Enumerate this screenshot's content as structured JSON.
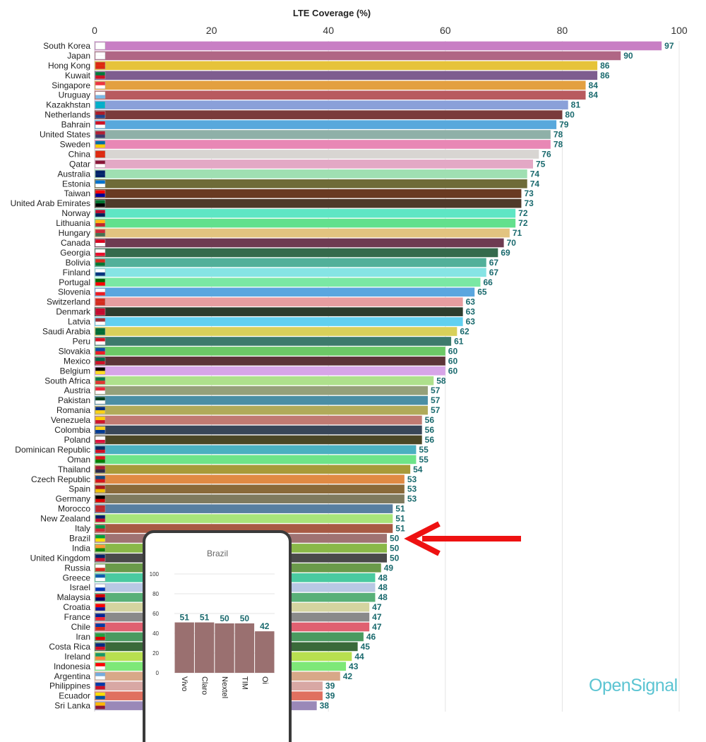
{
  "colors": {
    "value_label": "#1a6a6e",
    "brand": "#5bc4d2",
    "arrow": "#ee1111",
    "inset_bar": "#9a7070"
  },
  "brand_text": "OpenSignal",
  "chart_data": [
    {
      "type": "bar",
      "orientation": "horizontal",
      "title": "LTE Coverage (%)",
      "xlim": [
        0,
        100
      ],
      "x_ticks": [
        0,
        20,
        40,
        60,
        80,
        100
      ],
      "grid": true,
      "data_labels": true,
      "highlight": "Brazil",
      "categories": [
        "South Korea",
        "Japan",
        "Hong Kong",
        "Kuwait",
        "Singapore",
        "Uruguay",
        "Kazakhstan",
        "Netherlands",
        "Bahrain",
        "United States",
        "Sweden",
        "China",
        "Qatar",
        "Australia",
        "Estonia",
        "Taiwan",
        "United Arab Emirates",
        "Norway",
        "Lithuania",
        "Hungary",
        "Canada",
        "Georgia",
        "Bolivia",
        "Finland",
        "Portugal",
        "Slovenia",
        "Switzerland",
        "Denmark",
        "Latvia",
        "Saudi Arabia",
        "Peru",
        "Slovakia",
        "Mexico",
        "Belgium",
        "South Africa",
        "Austria",
        "Pakistan",
        "Romania",
        "Venezuela",
        "Colombia",
        "Poland",
        "Dominican Republic",
        "Oman",
        "Thailand",
        "Czech Republic",
        "Spain",
        "Germany",
        "Morocco",
        "New Zealand",
        "Italy",
        "Brazil",
        "India",
        "United Kingdom",
        "Russia",
        "Greece",
        "Israel",
        "Malaysia",
        "Croatia",
        "France",
        "Chile",
        "Iran",
        "Costa Rica",
        "Ireland",
        "Indonesia",
        "Argentina",
        "Philippines",
        "Ecuador",
        "Sri Lanka"
      ],
      "values": [
        97,
        90,
        86,
        86,
        84,
        84,
        81,
        80,
        79,
        78,
        78,
        76,
        75,
        74,
        74,
        73,
        73,
        72,
        72,
        71,
        70,
        69,
        67,
        67,
        66,
        65,
        63,
        63,
        63,
        62,
        61,
        60,
        60,
        60,
        58,
        57,
        57,
        57,
        56,
        56,
        56,
        55,
        55,
        54,
        53,
        53,
        53,
        51,
        51,
        51,
        50,
        50,
        50,
        49,
        48,
        48,
        48,
        47,
        47,
        47,
        46,
        45,
        44,
        43,
        42,
        39,
        39,
        38
      ],
      "bar_colors": [
        "#c87fc4",
        "#b06685",
        "#e6c33a",
        "#7e5d8f",
        "#e3a040",
        "#b85a5f",
        "#8aa0d9",
        "#7a3b3b",
        "#58a8dc",
        "#8fb0a8",
        "#e887b5",
        "#d8d5d2",
        "#e3a8c5",
        "#9fdfb2",
        "#6e6b38",
        "#693a22",
        "#4f3a2a",
        "#5ee6c4",
        "#62e08d",
        "#e2c480",
        "#6e3b52",
        "#356a4c",
        "#52b09a",
        "#86e4e4",
        "#7ae8a4",
        "#5aa6df",
        "#e69da0",
        "#2d3d2e",
        "#61d0ef",
        "#d8d05a",
        "#3d7a6c",
        "#6cc866",
        "#5c3438",
        "#d7a5e8",
        "#aee08c",
        "#95a07a",
        "#4b8ea4",
        "#b0aa5a",
        "#c07a72",
        "#384658",
        "#4a4626",
        "#4bb0c0",
        "#6ee488",
        "#a79a3a",
        "#e08a44",
        "#8a6a3a",
        "#7f7a5e",
        "#587fa0",
        "#a8e47a",
        "#a85a44",
        "#a07272",
        "#8ab848",
        "#4a4a4a",
        "#6a9a4a",
        "#4acaa0",
        "#b8c8e4",
        "#58b078",
        "#d4d4a0",
        "#8a8a8a",
        "#e06070",
        "#4a9a60",
        "#3a6a3a",
        "#b8e050",
        "#7ee878",
        "#d8a888",
        "#d8a8a4",
        "#e07060",
        "#9a88b8"
      ],
      "flags": [
        [
          "#ffffff",
          "#ffffff"
        ],
        [
          "#ffffff",
          "#ffffff"
        ],
        [
          "#de2910",
          "#de2910"
        ],
        [
          "#007a3d",
          "#ce1126"
        ],
        [
          "#ef3340",
          "#ffffff"
        ],
        [
          "#ffffff",
          "#7ab8e6"
        ],
        [
          "#00afca",
          "#00afca"
        ],
        [
          "#ae1c28",
          "#21468b"
        ],
        [
          "#ce1126",
          "#ffffff"
        ],
        [
          "#b22234",
          "#3c3b6e"
        ],
        [
          "#006aa7",
          "#fecc00"
        ],
        [
          "#de2910",
          "#de2910"
        ],
        [
          "#8a1538",
          "#ffffff"
        ],
        [
          "#012169",
          "#012169"
        ],
        [
          "#0072ce",
          "#ffffff"
        ],
        [
          "#fe0000",
          "#000095"
        ],
        [
          "#00732f",
          "#000000"
        ],
        [
          "#ba0c2f",
          "#00205b"
        ],
        [
          "#fdb913",
          "#c1272d"
        ],
        [
          "#ce2939",
          "#477050"
        ],
        [
          "#d80621",
          "#ffffff"
        ],
        [
          "#ffffff",
          "#e8112d"
        ],
        [
          "#d52b1e",
          "#007934"
        ],
        [
          "#ffffff",
          "#003580"
        ],
        [
          "#006600",
          "#ff0000"
        ],
        [
          "#ffffff",
          "#ed1c24"
        ],
        [
          "#d52b1e",
          "#d52b1e"
        ],
        [
          "#c60c30",
          "#c60c30"
        ],
        [
          "#9e3039",
          "#ffffff"
        ],
        [
          "#006c35",
          "#006c35"
        ],
        [
          "#d91023",
          "#ffffff"
        ],
        [
          "#0b4ea2",
          "#ee1c25"
        ],
        [
          "#006847",
          "#ce1126"
        ],
        [
          "#000000",
          "#fdda24"
        ],
        [
          "#007a4d",
          "#de3831"
        ],
        [
          "#ed2939",
          "#ffffff"
        ],
        [
          "#01411c",
          "#ffffff"
        ],
        [
          "#002b7f",
          "#fcd116"
        ],
        [
          "#ffcc00",
          "#cf142b"
        ],
        [
          "#fcd116",
          "#003893"
        ],
        [
          "#ffffff",
          "#dc143c"
        ],
        [
          "#002d62",
          "#ce1126"
        ],
        [
          "#db161b",
          "#008000"
        ],
        [
          "#a51931",
          "#2d2a4a"
        ],
        [
          "#11457e",
          "#d7141a"
        ],
        [
          "#aa151b",
          "#f1bf00"
        ],
        [
          "#000000",
          "#dd0000"
        ],
        [
          "#c1272d",
          "#c1272d"
        ],
        [
          "#012169",
          "#c8102e"
        ],
        [
          "#009246",
          "#ce2b37"
        ],
        [
          "#009c3b",
          "#ffdf00"
        ],
        [
          "#ff9933",
          "#138808"
        ],
        [
          "#012169",
          "#c8102e"
        ],
        [
          "#ffffff",
          "#d52b1e"
        ],
        [
          "#0d5eaf",
          "#ffffff"
        ],
        [
          "#ffffff",
          "#0038b8"
        ],
        [
          "#cc0001",
          "#010066"
        ],
        [
          "#ff0000",
          "#171796"
        ],
        [
          "#002395",
          "#ed2939"
        ],
        [
          "#0039a6",
          "#d52b1e"
        ],
        [
          "#239f40",
          "#da0000"
        ],
        [
          "#002b7f",
          "#ce1126"
        ],
        [
          "#169b62",
          "#ff883e"
        ],
        [
          "#ff0000",
          "#ffffff"
        ],
        [
          "#74acdf",
          "#ffffff"
        ],
        [
          "#0038a8",
          "#ce1126"
        ],
        [
          "#ffdd00",
          "#034ea2"
        ],
        [
          "#ffb700",
          "#8d153a"
        ]
      ]
    },
    {
      "type": "bar",
      "title": "Brazil",
      "categories": [
        "Vivo",
        "Claro",
        "Nextel",
        "TIM",
        "Oi"
      ],
      "values": [
        51,
        51,
        50,
        50,
        42
      ],
      "ylim": [
        0,
        100
      ],
      "y_ticks": [
        0,
        20,
        40,
        60,
        80,
        100
      ],
      "grid": true,
      "data_labels": true
    }
  ]
}
